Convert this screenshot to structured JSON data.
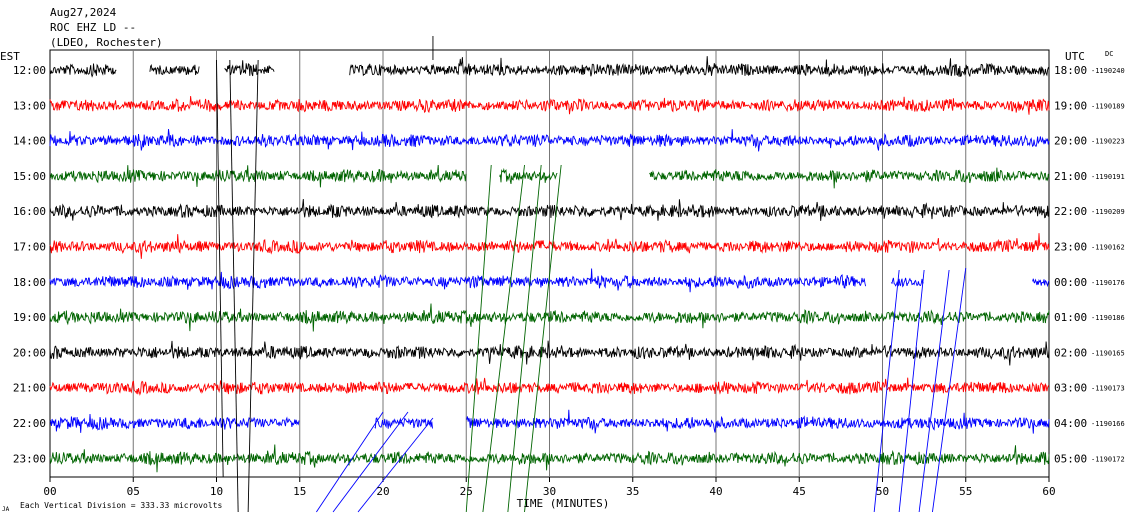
{
  "header": {
    "date": "Aug27,2024",
    "station": "ROC EHZ LD --",
    "network": "(LDEO, Rochester)"
  },
  "left_axis_title": "EST",
  "right_axis_title": "UTC",
  "dc_label": "DC",
  "footer_note": "Each Vertical Division = 333.33 microvolts",
  "footer_mark": "JA",
  "chart_data": {
    "type": "line",
    "xlabel": "TIME (MINUTES)",
    "xlim": [
      0,
      60
    ],
    "x_ticks": [
      "00",
      "05",
      "10",
      "15",
      "20",
      "25",
      "30",
      "35",
      "40",
      "45",
      "50",
      "55",
      "60"
    ],
    "trace_colors": [
      "#000000",
      "#ff0000",
      "#0000ff",
      "#006400"
    ],
    "rows": [
      {
        "est": "12:00",
        "utc": "18:00",
        "dc": "-1190240",
        "color": "#000000",
        "gaps": [
          [
            4,
            6
          ],
          [
            9,
            10.5
          ],
          [
            13.5,
            18
          ]
        ]
      },
      {
        "est": "13:00",
        "utc": "19:00",
        "dc": "-1190189",
        "color": "#ff0000",
        "gaps": []
      },
      {
        "est": "14:00",
        "utc": "20:00",
        "dc": "-1190223",
        "color": "#0000ff",
        "gaps": []
      },
      {
        "est": "15:00",
        "utc": "21:00",
        "dc": "-1190191",
        "color": "#006400",
        "gaps": [
          [
            25,
            27
          ],
          [
            30.5,
            36
          ]
        ]
      },
      {
        "est": "16:00",
        "utc": "22:00",
        "dc": "-1190209",
        "color": "#000000",
        "gaps": []
      },
      {
        "est": "17:00",
        "utc": "23:00",
        "dc": "-1190162",
        "color": "#ff0000",
        "gaps": []
      },
      {
        "est": "18:00",
        "utc": "00:00",
        "dc": "-1190176",
        "color": "#0000ff",
        "gaps": [
          [
            49,
            50.5
          ],
          [
            52.5,
            59
          ]
        ]
      },
      {
        "est": "19:00",
        "utc": "01:00",
        "dc": "-1190186",
        "color": "#006400",
        "gaps": []
      },
      {
        "est": "20:00",
        "utc": "02:00",
        "dc": "-1190165",
        "color": "#000000",
        "gaps": []
      },
      {
        "est": "21:00",
        "utc": "03:00",
        "dc": "-1190173",
        "color": "#ff0000",
        "gaps": []
      },
      {
        "est": "22:00",
        "utc": "04:00",
        "dc": "-1190166",
        "color": "#0000ff",
        "gaps": [
          [
            15,
            19.5
          ],
          [
            23,
            25
          ]
        ]
      },
      {
        "est": "23:00",
        "utc": "05:00",
        "dc": "-1190172",
        "color": "#006400",
        "gaps": []
      }
    ],
    "grid": true
  }
}
